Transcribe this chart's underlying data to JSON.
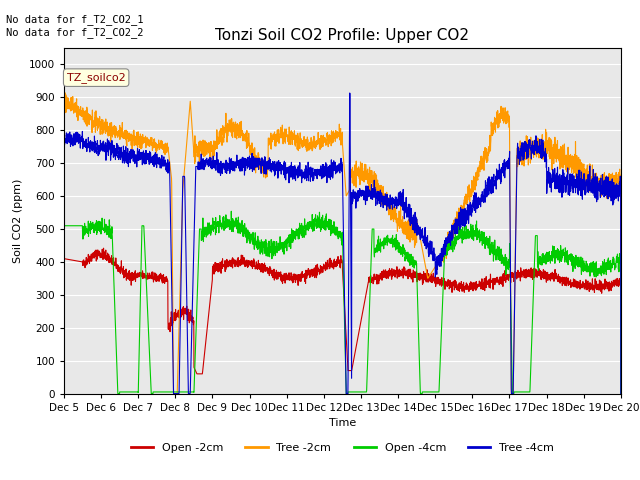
{
  "title": "Tonzi Soil CO2 Profile: Upper CO2",
  "xlabel": "Time",
  "ylabel": "Soil CO2 (ppm)",
  "ylim": [
    0,
    1050
  ],
  "annotation_text": "No data for f_T2_CO2_1\nNo data for f_T2_CO2_2",
  "legend_label": "TZ_soilco2",
  "series_labels": [
    "Open -2cm",
    "Tree -2cm",
    "Open -4cm",
    "Tree -4cm"
  ],
  "series_colors": [
    "#cc0000",
    "#ff9900",
    "#00cc00",
    "#0000cc"
  ],
  "x_tick_labels": [
    "Dec 5",
    "Dec 6",
    "Dec 7",
    "Dec 8",
    "Dec 9",
    "Dec 10",
    "Dec 11",
    "Dec 12",
    "Dec 13",
    "Dec 14",
    "Dec 15",
    "Dec 16",
    "Dec 17",
    "Dec 18",
    "Dec 19",
    "Dec 20"
  ],
  "grid_color": "#ffffff",
  "title_fontsize": 11,
  "axis_fontsize": 8,
  "tick_fontsize": 7.5
}
